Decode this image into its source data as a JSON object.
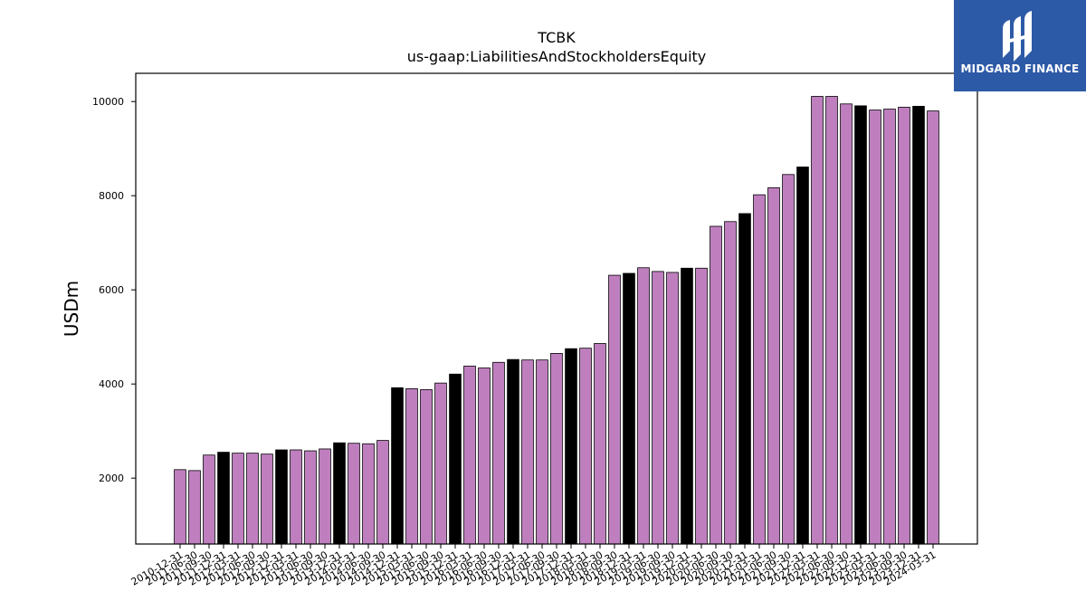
{
  "header": {
    "title": "TCBK",
    "subtitle": "us-gaap:LiabilitiesAndStockholdersEquity"
  },
  "logo": {
    "text": "MIDGARD FINANCE",
    "icon": "midgard-logo-icon",
    "background": "#2d5aa7"
  },
  "colors": {
    "regular_bar": "#bf7fbf",
    "highlight_bar": "#000000"
  },
  "chart_data": {
    "type": "bar",
    "title": "TCBK",
    "subtitle": "us-gaap:LiabilitiesAndStockholdersEquity",
    "xlabel": "",
    "ylabel": "USDm",
    "ylim": [
      600,
      10600
    ],
    "yticks": [
      2000,
      4000,
      6000,
      8000,
      10000
    ],
    "grid": false,
    "categories": [
      "2010-12-31",
      "2011-06-30",
      "2011-09-30",
      "2011-12-31",
      "2012-03-31",
      "2012-06-30",
      "2012-09-30",
      "2012-12-31",
      "2013-03-31",
      "2013-06-30",
      "2013-09-30",
      "2013-12-31",
      "2014-03-31",
      "2014-06-30",
      "2014-09-30",
      "2014-12-31",
      "2015-03-31",
      "2015-06-30",
      "2015-09-30",
      "2015-12-31",
      "2016-03-31",
      "2016-06-30",
      "2016-09-30",
      "2016-12-31",
      "2017-03-31",
      "2017-06-30",
      "2017-09-30",
      "2017-12-31",
      "2018-03-31",
      "2018-06-30",
      "2018-09-30",
      "2018-12-31",
      "2019-03-31",
      "2019-06-30",
      "2019-09-30",
      "2019-12-31",
      "2020-03-31",
      "2020-06-30",
      "2020-09-30",
      "2020-12-31",
      "2021-03-31",
      "2021-06-30",
      "2021-09-30",
      "2021-12-31",
      "2022-03-31",
      "2022-06-30",
      "2022-09-30",
      "2022-12-31",
      "2023-03-31",
      "2023-06-30",
      "2023-09-30",
      "2023-12-31",
      "2024-03-31"
    ],
    "values": [
      2180,
      2160,
      2490,
      2550,
      2530,
      2530,
      2510,
      2600,
      2600,
      2580,
      2620,
      2750,
      2740,
      2730,
      2800,
      3920,
      3900,
      3880,
      4020,
      4210,
      4380,
      4340,
      4460,
      4520,
      4510,
      4510,
      4650,
      4750,
      4760,
      4860,
      6310,
      6350,
      6470,
      6390,
      6370,
      6460,
      6460,
      7350,
      7450,
      7620,
      8020,
      8170,
      8450,
      8610,
      10110,
      10110,
      9950,
      9910,
      9820,
      9840,
      9880,
      9900,
      9800
    ],
    "highlighted": [
      false,
      false,
      false,
      true,
      false,
      false,
      false,
      true,
      false,
      false,
      false,
      true,
      false,
      false,
      false,
      true,
      false,
      false,
      false,
      true,
      false,
      false,
      false,
      true,
      false,
      false,
      false,
      true,
      false,
      false,
      false,
      true,
      false,
      false,
      false,
      true,
      false,
      false,
      false,
      true,
      false,
      false,
      false,
      true,
      false,
      false,
      false,
      true,
      false,
      false,
      false,
      true,
      false
    ]
  }
}
